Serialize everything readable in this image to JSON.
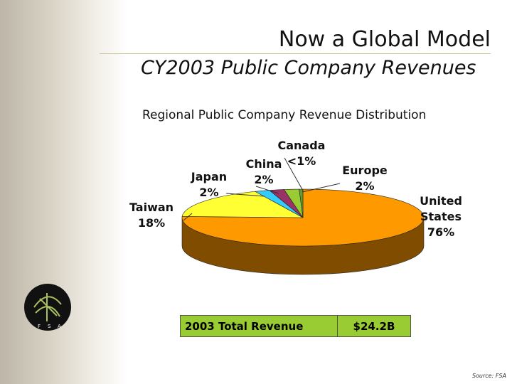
{
  "header": {
    "title": "Now a Global Model",
    "subtitle": "CY2003 Public Company Revenues"
  },
  "chart_data": {
    "type": "pie",
    "title": "Regional Public Company Revenue Distribution",
    "categories": [
      "United States",
      "Taiwan",
      "Japan",
      "China",
      "Europe",
      "Canada"
    ],
    "values": [
      76,
      18,
      2,
      2,
      2,
      0.5
    ],
    "value_labels": [
      "76%",
      "18%",
      "2%",
      "2%",
      "2%",
      "<1%"
    ],
    "colors": [
      "#ff9900",
      "#ffff33",
      "#33ccff",
      "#993366",
      "#99cc33",
      "#669933"
    ]
  },
  "table": {
    "rows": [
      [
        "2003 Total Revenue",
        "$24.2B"
      ]
    ]
  },
  "logo": {
    "letters": [
      "F",
      "S",
      "A"
    ]
  },
  "footer": {
    "source": "Source: FSA"
  }
}
